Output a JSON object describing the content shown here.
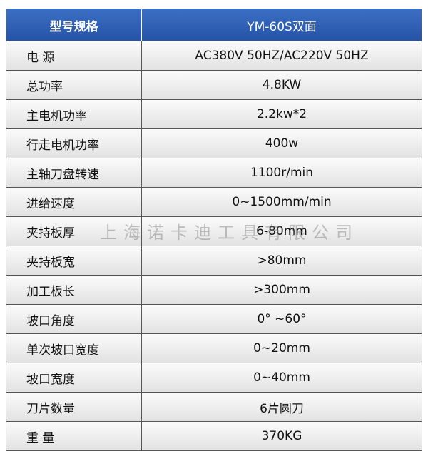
{
  "header": [
    "型号规格",
    "YM-60S双面"
  ],
  "rows": [
    [
      "电 源",
      "AC380V 50HZ/AC220V 50HZ"
    ],
    [
      "总功率",
      "4.8KW"
    ],
    [
      "主电机功率",
      "2.2kw*2"
    ],
    [
      "行走电机功率",
      "400w"
    ],
    [
      "主轴刀盘转速",
      "1100r/min"
    ],
    [
      "进给速度",
      "0~1500mm/min"
    ],
    [
      "夹持板厚",
      "6-80mm"
    ],
    [
      "夹持板宽",
      ">80mm"
    ],
    [
      "加工板长",
      ">300mm"
    ],
    [
      "坡口角度",
      "0°  ~60°"
    ],
    [
      "单次坡口宽度",
      "0~20mm"
    ],
    [
      "坡口宽度",
      "0~40mm"
    ],
    [
      "刀片数量",
      "6片圆刀"
    ],
    [
      "重 量",
      "370KG"
    ]
  ],
  "watermark": "上海诺卡迪工具有限公司"
}
